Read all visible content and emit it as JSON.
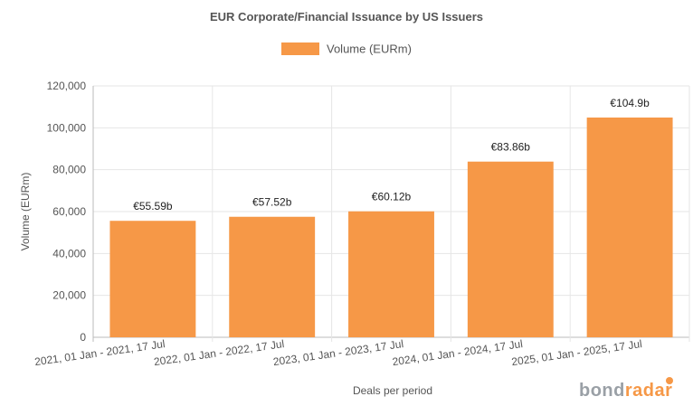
{
  "chart_data": {
    "type": "bar",
    "title": "EUR Corporate/Financial Issuance by US Issuers",
    "xlabel": "Deals per period",
    "ylabel": "Volume (EURm)",
    "ylim": [
      0,
      120000
    ],
    "yticks": [
      "0",
      "20,000",
      "40,000",
      "60,000",
      "80,000",
      "100,000",
      "120,000"
    ],
    "grid": true,
    "legend_placement": "top-center",
    "categories": [
      "2021, 01 Jan - 2021, 17 Jul",
      "2022, 01 Jan - 2022, 17 Jul",
      "2023, 01 Jan - 2023, 17 Jul",
      "2024, 01 Jan - 2024, 17 Jul",
      "2025, 01 Jan - 2025, 17 Jul"
    ],
    "series": [
      {
        "name": "Volume (EURm)",
        "color": "#f69847",
        "values": [
          55590,
          57520,
          60120,
          83860,
          104900
        ],
        "labels": [
          "€55.59b",
          "€57.52b",
          "€60.12b",
          "€83.86b",
          "€104.9b"
        ]
      }
    ]
  },
  "branding": {
    "logo_left": "bond",
    "logo_right": "radar",
    "logo_color_left": "#9aa0a6",
    "logo_color_right": "#f69847"
  }
}
